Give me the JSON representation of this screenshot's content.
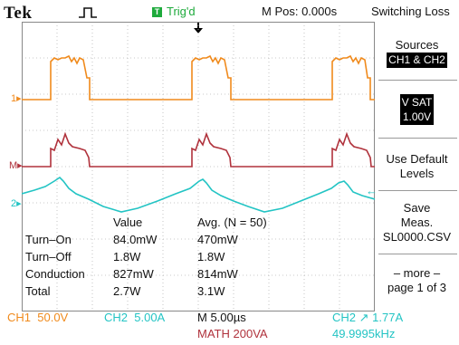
{
  "header": {
    "brand": "Tek",
    "acq_icon": "pulse-acquire-icon",
    "trig_indicator": "T",
    "trig_status": "Trig'd",
    "position": "M Pos: 0.000s",
    "menu_title": "Switching Loss"
  },
  "colors": {
    "ch1": "#f08a1c",
    "ch2": "#23c4c4",
    "math": "#b0323c",
    "trig": "#1eaa3c"
  },
  "channel_markers": {
    "ch1": "1",
    "ch2": "2",
    "math": "M"
  },
  "side_menu": {
    "sources_label": "Sources",
    "sources_value": "CH1 & CH2",
    "vsat_label": "V SAT",
    "vsat_value": "1.00V",
    "default_levels_line1": "Use Default",
    "default_levels_line2": "Levels",
    "save_line1": "Save",
    "save_line2": "Meas.",
    "save_line3": "SL0000.CSV",
    "more_line1": "– more –",
    "more_line2": "page 1 of 3"
  },
  "measurements": {
    "header_value": "Value",
    "header_avg": "Avg. (N = 50)",
    "rows": [
      {
        "label": "Turn–On",
        "value": "84.0mW",
        "avg": "470mW"
      },
      {
        "label": "Turn–Off",
        "value": "1.8W",
        "avg": "1.8W"
      },
      {
        "label": "Conduction",
        "value": "827mW",
        "avg": "814mW"
      },
      {
        "label": "Total",
        "value": "2.7W",
        "avg": "3.1W"
      }
    ]
  },
  "status_bar": {
    "ch1_label": "CH1",
    "ch1_scale": "50.0V",
    "ch2_label": "CH2",
    "ch2_scale": "5.00A",
    "timebase": "M 5.00µs",
    "math_label": "MATH",
    "math_scale": "200VA",
    "trigger_source": "CH2",
    "trigger_level": "1.77A",
    "frequency": "49.9995kHz"
  }
}
